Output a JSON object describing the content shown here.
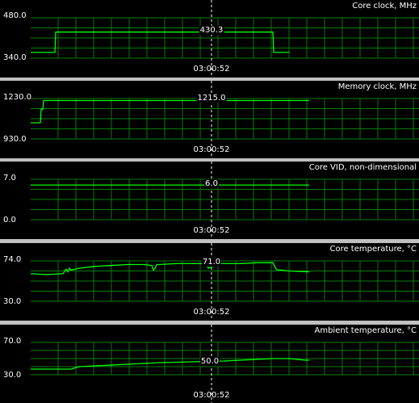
{
  "cursor_time": "03:00:52",
  "colors": {
    "background": "#000000",
    "grid": "#008000",
    "line": "#00ff00",
    "text": "#ffffff",
    "separator": "#c0c0c0"
  },
  "panels": [
    {
      "id": "core-clock",
      "title": "Core clock, MHz",
      "ymax_label": "480.0",
      "ymin_label": "340.0",
      "cursor_value": "430.3",
      "time": "03:00:52"
    },
    {
      "id": "memory-clock",
      "title": "Memory clock, MHz",
      "ymax_label": "1230.0",
      "ymin_label": "930.0",
      "cursor_value": "1215.0",
      "time": "03:00:52"
    },
    {
      "id": "core-vid",
      "title": "Core VID, non-dimensional",
      "ymax_label": "7.0",
      "ymin_label": "0.0",
      "cursor_value": "6.0",
      "time": "03:00:52"
    },
    {
      "id": "core-temp",
      "title": "Core temperature, °C",
      "ymax_label": "74.0",
      "ymin_label": "30.0",
      "cursor_value": "71.0",
      "time": "03:00:52"
    },
    {
      "id": "ambient-temp",
      "title": "Ambient temperature, °C",
      "ymax_label": "70.0",
      "ymin_label": "30.0",
      "cursor_value": "50.0",
      "time": "03:00:52"
    }
  ],
  "chart_data": [
    {
      "type": "line",
      "title": "Core clock, MHz",
      "ylim": [
        340,
        480
      ],
      "x": [
        0,
        30,
        31,
        300,
        301,
        320
      ],
      "series": [
        {
          "values": [
            360,
            360,
            430.3,
            430.3,
            360,
            360
          ]
        }
      ]
    },
    {
      "type": "line",
      "title": "Memory clock, MHz",
      "ylim": [
        930,
        1230
      ],
      "x": [
        0,
        12,
        13,
        15,
        16,
        345
      ],
      "series": [
        {
          "values": [
            1050,
            1050,
            1150,
            1150,
            1215,
            1215
          ]
        }
      ]
    },
    {
      "type": "line",
      "title": "Core VID, non-dimensional",
      "ylim": [
        0,
        7
      ],
      "x": [
        0,
        345
      ],
      "series": [
        {
          "values": [
            6,
            6
          ]
        }
      ]
    },
    {
      "type": "line",
      "title": "Core temperature, °C",
      "ylim": [
        30,
        74
      ],
      "x": [
        0,
        20,
        40,
        44,
        46,
        48,
        50,
        60,
        80,
        100,
        120,
        140,
        150,
        152,
        154,
        156,
        160,
        180,
        200,
        218,
        220,
        222,
        224,
        226,
        240,
        260,
        280,
        300,
        304,
        306,
        310,
        320,
        345
      ],
      "series": [
        {
          "values": [
            60,
            59,
            60,
            65,
            62,
            66,
            64,
            66,
            68,
            69,
            70,
            70,
            69,
            64,
            66,
            70,
            70,
            71,
            71,
            71,
            66,
            67,
            66,
            71,
            71,
            71,
            72,
            72,
            65,
            64,
            64,
            63,
            62
          ]
        }
      ]
    },
    {
      "type": "line",
      "title": "Ambient temperature, °C",
      "ylim": [
        30,
        70
      ],
      "x": [
        0,
        30,
        50,
        60,
        80,
        120,
        160,
        200,
        240,
        260,
        280,
        300,
        320,
        340,
        345
      ],
      "series": [
        {
          "values": [
            37,
            37,
            37,
            40,
            41,
            43,
            45,
            46,
            47,
            48,
            49,
            50,
            50,
            48,
            48
          ]
        }
      ]
    }
  ]
}
